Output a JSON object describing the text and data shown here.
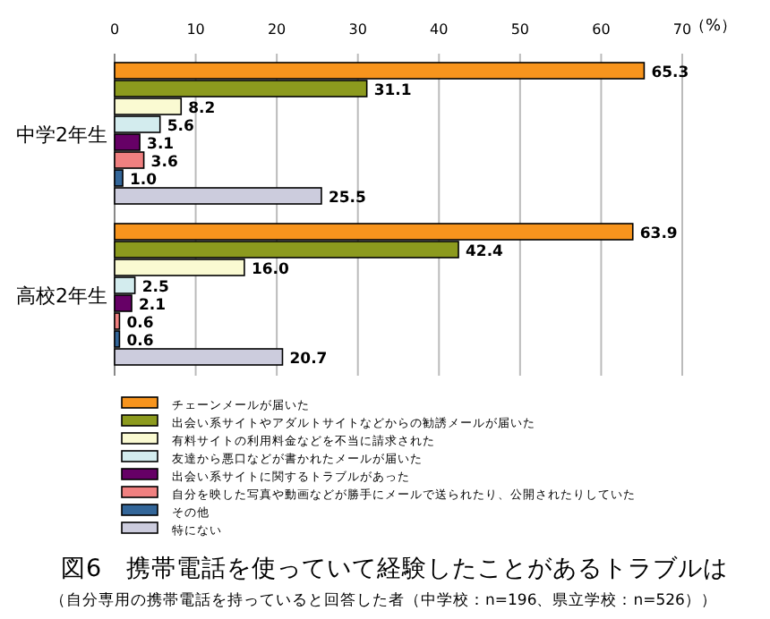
{
  "chart_data": {
    "type": "bar",
    "orientation": "horizontal",
    "title": "図6　携帯電話を使っていて経験したことがあるトラブルは",
    "subtitle": "（自分専用の携帯電話を持っていると回答した者（中学校：n=196、県立学校：n=526））",
    "xlabel": "（%）",
    "categories": [
      "中学2年生",
      "高校2年生"
    ],
    "series": [
      {
        "name": "チェーンメールが届いた",
        "color": "#f7941d",
        "values": [
          65.3,
          63.9
        ],
        "value_labels": [
          "65.3",
          "63.9"
        ]
      },
      {
        "name": "出会い系サイトやアダルトサイトなどからの勧誘メールが届いた",
        "color": "#8c9a1e",
        "values": [
          31.1,
          42.4
        ],
        "value_labels": [
          "31.1",
          "42.4"
        ]
      },
      {
        "name": "有料サイトの利用料金などを不当に請求された",
        "color": "#fafad2",
        "values": [
          8.2,
          16
        ],
        "value_labels": [
          "8.2",
          "16.0"
        ]
      },
      {
        "name": "友達から悪口などが書かれたメールが届いた",
        "color": "#d3ecee",
        "values": [
          5.6,
          2.5
        ],
        "value_labels": [
          "5.6",
          "2.5"
        ]
      },
      {
        "name": "出会い系サイトに関するトラブルがあった",
        "color": "#660066",
        "values": [
          3.1,
          2.1
        ],
        "value_labels": [
          "3.1",
          "2.1"
        ]
      },
      {
        "name": "自分を映した写真や動画などが勝手にメールで送られたり、公開されたりしていた",
        "color": "#f08080",
        "values": [
          3.6,
          0.6
        ],
        "value_labels": [
          "3.6",
          "0.6"
        ]
      },
      {
        "name": "その他",
        "color": "#336699",
        "values": [
          1,
          0.6
        ],
        "value_labels": [
          "1.0",
          "0.6"
        ]
      },
      {
        "name": "特にない",
        "color": "#ccccdd",
        "values": [
          25.5,
          20.7
        ],
        "value_labels": [
          "25.5",
          "20.7"
        ]
      }
    ],
    "xlim": [
      0,
      70
    ],
    "xticks": [
      0,
      10,
      20,
      30,
      40,
      50,
      60,
      70
    ],
    "grid": "x",
    "legend": "bottom"
  }
}
